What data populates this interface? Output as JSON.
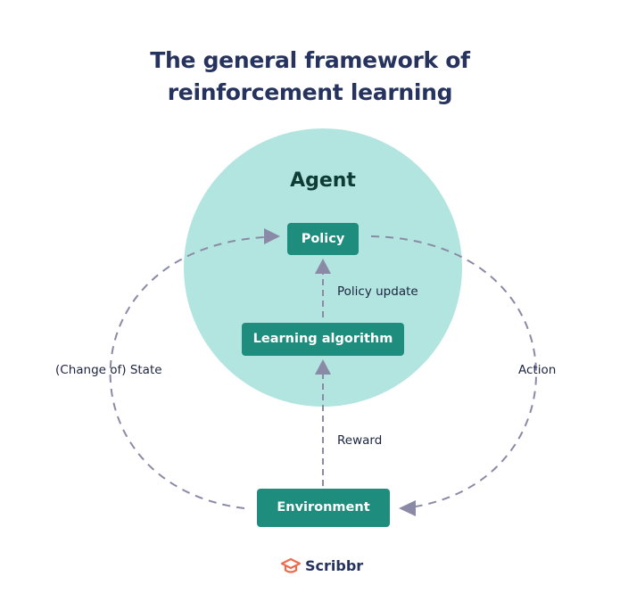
{
  "title": {
    "line1": "The general framework of",
    "line2": "reinforcement learning"
  },
  "agent": {
    "label": "Agent",
    "circle_color": "#b2e5df"
  },
  "nodes": {
    "policy": "Policy",
    "learning_algorithm": "Learning algorithm",
    "environment": "Environment"
  },
  "edges": {
    "policy_update": "Policy update",
    "reward": "Reward",
    "state": "(Change of) State",
    "action": "Action"
  },
  "colors": {
    "box": "#1e8d7d",
    "title": "#26335e",
    "arrow": "#8a8aa6",
    "logo_accent": "#ee6c4d"
  },
  "logo": {
    "text": "Scribbr",
    "icon": "graduation-cap-icon"
  }
}
